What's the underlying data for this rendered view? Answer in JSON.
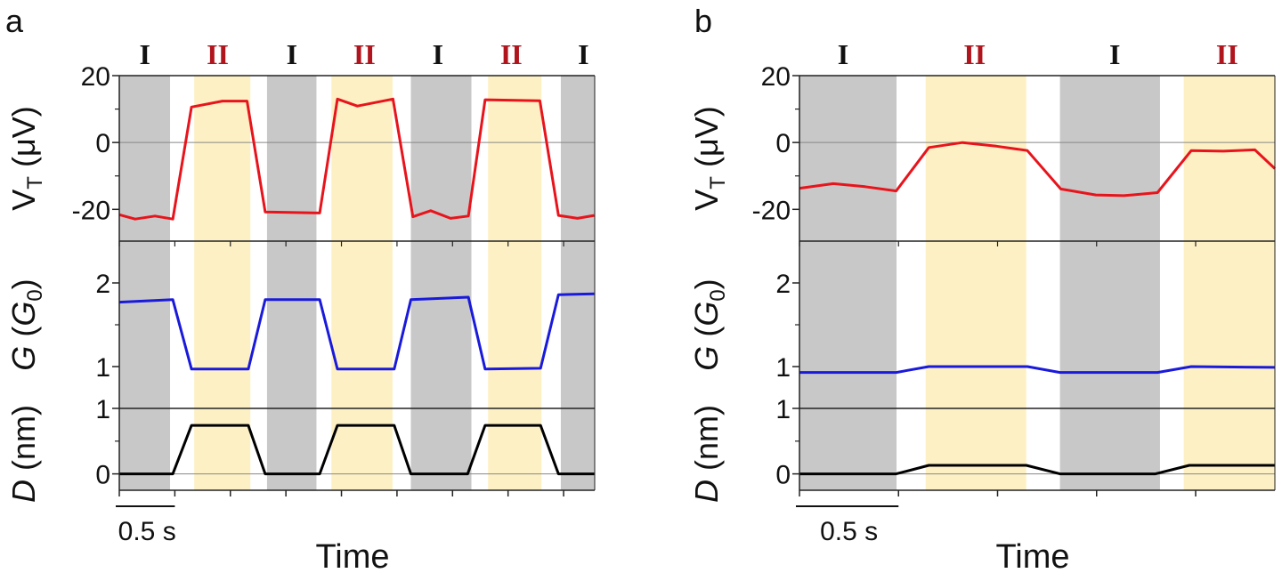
{
  "colors": {
    "state_I": "#c8c8c8",
    "state_II": "#fdf0c4",
    "VT": "#e8141c",
    "G": "#1a1adb",
    "D": "#000000",
    "label_I": "#111111",
    "label_II": "#b0141c"
  },
  "chart_data": [
    {
      "type": "line",
      "panel_label": "a",
      "xlabel": "Time",
      "scale_bar": "0.5 s",
      "x_unit": "s",
      "xlim": [
        0,
        4.28
      ],
      "x_tick_step": 0.5,
      "regions": [
        {
          "state": "I",
          "range": [
            0,
            0.457
          ],
          "label_at": 0.23
        },
        {
          "state": "II",
          "range": [
            0.675,
            1.18
          ],
          "label_at": 0.886
        },
        {
          "state": "I",
          "range": [
            1.33,
            1.775
          ],
          "label_at": 1.554
        },
        {
          "state": "II",
          "range": [
            1.91,
            2.46
          ],
          "label_at": 2.207
        },
        {
          "state": "I",
          "range": [
            2.625,
            3.17
          ],
          "label_at": 2.868
        },
        {
          "state": "II",
          "range": [
            3.32,
            3.8
          ],
          "label_at": 3.529
        },
        {
          "state": "I",
          "range": [
            3.975,
            4.28
          ],
          "label_at": 4.179
        }
      ],
      "panels": [
        {
          "key": "VT",
          "label": {
            "main": "V",
            "sub": "T",
            "unit": "(μV)"
          },
          "ylim": [
            -29.5,
            20
          ],
          "ticks": [
            20,
            0,
            -20
          ],
          "minor": [
            10,
            -10
          ],
          "zero_line": true,
          "x": [
            0,
            0.143,
            0.321,
            0.482,
            0.65,
            0.929,
            1.15,
            1.314,
            1.804,
            1.964,
            2.143,
            2.464,
            2.643,
            2.804,
            2.982,
            3.143,
            3.293,
            3.786,
            3.954,
            4.125,
            4.275
          ],
          "y": [
            -21.6,
            -22.9,
            -22,
            -22.9,
            10.6,
            12.4,
            12.4,
            -20.8,
            -21.1,
            13,
            10.9,
            13,
            -22.2,
            -20.4,
            -22.7,
            -22,
            12.8,
            12.5,
            -21.8,
            -22.7,
            -21.8
          ]
        },
        {
          "key": "G",
          "label": {
            "main": "G",
            "sub": "0",
            "unit_open": "(",
            "unit_main": "G",
            "unit_close": ")"
          },
          "ylim": [
            0.5,
            2.5
          ],
          "ticks": [
            2,
            1
          ],
          "minor": [
            1.5
          ],
          "zero_line": false,
          "x": [
            0,
            0.482,
            0.65,
            1.161,
            1.314,
            1.804,
            1.964,
            2.475,
            2.625,
            3.143,
            3.293,
            3.793,
            3.954,
            4.275
          ],
          "y": [
            1.77,
            1.8,
            0.97,
            0.97,
            1.8,
            1.8,
            0.97,
            0.97,
            1.8,
            1.83,
            0.97,
            0.98,
            1.86,
            1.87
          ]
        },
        {
          "key": "D",
          "label": {
            "main": "D",
            "unit": "(nm)"
          },
          "ylim": [
            -0.25,
            1
          ],
          "ticks": [
            1,
            0
          ],
          "minor": [
            0.5
          ],
          "zero_line": true,
          "x": [
            0,
            0.482,
            0.65,
            1.161,
            1.314,
            1.804,
            1.964,
            2.475,
            2.625,
            3.136,
            3.293,
            3.793,
            3.954,
            4.275
          ],
          "y": [
            0,
            0,
            0.74,
            0.74,
            0,
            0,
            0.74,
            0.74,
            0,
            0,
            0.74,
            0.74,
            0,
            0
          ]
        }
      ]
    },
    {
      "type": "line",
      "panel_label": "b",
      "xlabel": "Time",
      "scale_bar": "0.5 s",
      "x_unit": "s",
      "xlim": [
        0,
        2.4
      ],
      "x_tick_step": 0.5,
      "regions": [
        {
          "state": "I",
          "range": [
            0,
            0.49
          ],
          "label_at": 0.22
        },
        {
          "state": "II",
          "range": [
            0.637,
            1.145
          ],
          "label_at": 0.884
        },
        {
          "state": "I",
          "range": [
            1.315,
            1.82
          ],
          "label_at": 1.592
        },
        {
          "state": "II",
          "range": [
            1.94,
            2.4
          ],
          "label_at": 2.159
        }
      ],
      "panels": [
        {
          "key": "VT",
          "label": {
            "main": "V",
            "sub": "T",
            "unit": "(μV)"
          },
          "ylim": [
            -29.5,
            20
          ],
          "ticks": [
            20,
            0,
            -20
          ],
          "minor": [
            10,
            -10
          ],
          "zero_line": true,
          "x": [
            0,
            0.171,
            0.331,
            0.488,
            0.653,
            0.823,
            0.994,
            1.15,
            1.319,
            1.496,
            1.637,
            1.807,
            1.978,
            2.139,
            2.299,
            2.4
          ],
          "y": [
            -13.7,
            -12.3,
            -13.2,
            -14.5,
            -1.5,
            0,
            -1.1,
            -2.4,
            -13.9,
            -15.7,
            -15.9,
            -15,
            -2.4,
            -2.6,
            -2.2,
            -7.8
          ]
        },
        {
          "key": "G",
          "label": {
            "main": "G",
            "sub": "0",
            "unit_open": "(",
            "unit_main": "G",
            "unit_close": ")"
          },
          "ylim": [
            0.5,
            2.5
          ],
          "ticks": [
            2,
            1
          ],
          "minor": [
            1.5
          ],
          "zero_line": false,
          "x": [
            0,
            0.488,
            0.653,
            1.151,
            1.315,
            1.807,
            1.978,
            2.4
          ],
          "y": [
            0.93,
            0.93,
            1.0,
            1.0,
            0.93,
            0.93,
            1.0,
            0.99
          ]
        },
        {
          "key": "D",
          "label": {
            "main": "D",
            "unit": "(nm)"
          },
          "ylim": [
            -0.25,
            1
          ],
          "ticks": [
            1,
            0
          ],
          "minor": [
            0.5
          ],
          "zero_line": true,
          "x": [
            0,
            0.488,
            0.653,
            1.145,
            1.315,
            1.797,
            1.968,
            2.4
          ],
          "y": [
            0,
            0,
            0.13,
            0.13,
            0,
            0,
            0.13,
            0.13
          ]
        }
      ]
    }
  ]
}
